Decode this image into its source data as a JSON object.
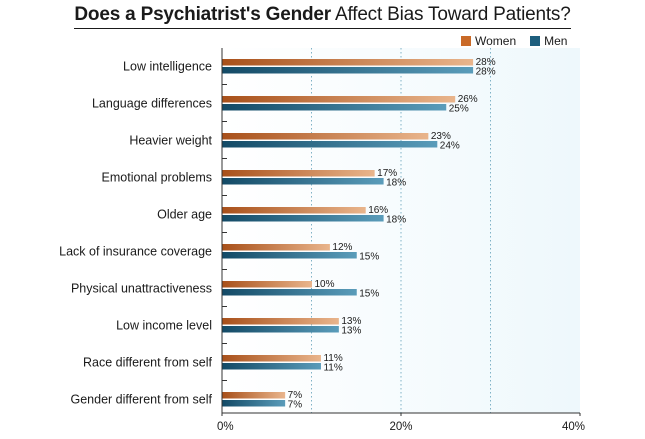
{
  "title": {
    "bold": "Does a Psychiatrist's Gender",
    "rest": " Affect Bias Toward Patients?"
  },
  "legend": {
    "women": "Women",
    "men": "Men"
  },
  "colors": {
    "women": "#c96a28",
    "men": "#1d5e7d",
    "plot_bg": "#eef8fc"
  },
  "chart_data": {
    "type": "bar",
    "orientation": "horizontal",
    "title": "Does a Psychiatrist's Gender Affect Bias Toward Patients?",
    "categories": [
      "Low intelligence",
      "Language differences",
      "Heavier weight",
      "Emotional problems",
      "Older age",
      "Lack of insurance coverage",
      "Physical unattractiveness",
      "Low income level",
      "Race different from self",
      "Gender different from self"
    ],
    "series": [
      {
        "name": "Women",
        "values": [
          28,
          26,
          23,
          17,
          16,
          12,
          10,
          13,
          11,
          7
        ]
      },
      {
        "name": "Men",
        "values": [
          28,
          25,
          24,
          18,
          18,
          15,
          15,
          13,
          11,
          7
        ]
      }
    ],
    "xlim": [
      0,
      40
    ],
    "x_ticks": [
      "0%",
      "20%",
      "40%"
    ],
    "value_suffix": "%",
    "grid": "vertical dotted",
    "legend_position": "top-right"
  }
}
